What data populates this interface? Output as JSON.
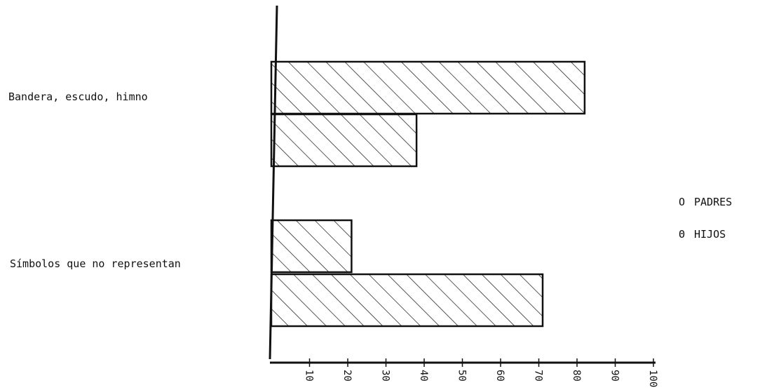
{
  "chart_data": {
    "type": "bar",
    "orientation": "horizontal",
    "categories": [
      "Bandera, escudo, himno",
      "Símbolos que no representan"
    ],
    "series": [
      {
        "name": "PADRES",
        "marker": "O",
        "values": [
          82,
          21
        ]
      },
      {
        "name": "HIJOS",
        "marker": "Θ",
        "values": [
          38,
          71
        ]
      }
    ],
    "xlim": [
      0,
      100
    ],
    "x_ticks": [
      "10",
      "20",
      "30",
      "40",
      "50",
      "60",
      "70",
      "80",
      "90",
      "100"
    ],
    "tick_label_orientation": "rotated",
    "bar_fill": "diagonal hatching",
    "legend_position": "right",
    "grid": false,
    "title": "",
    "xlabel": "",
    "ylabel": ""
  },
  "colors": {
    "ink": "#111111",
    "background": "#ffffff"
  }
}
